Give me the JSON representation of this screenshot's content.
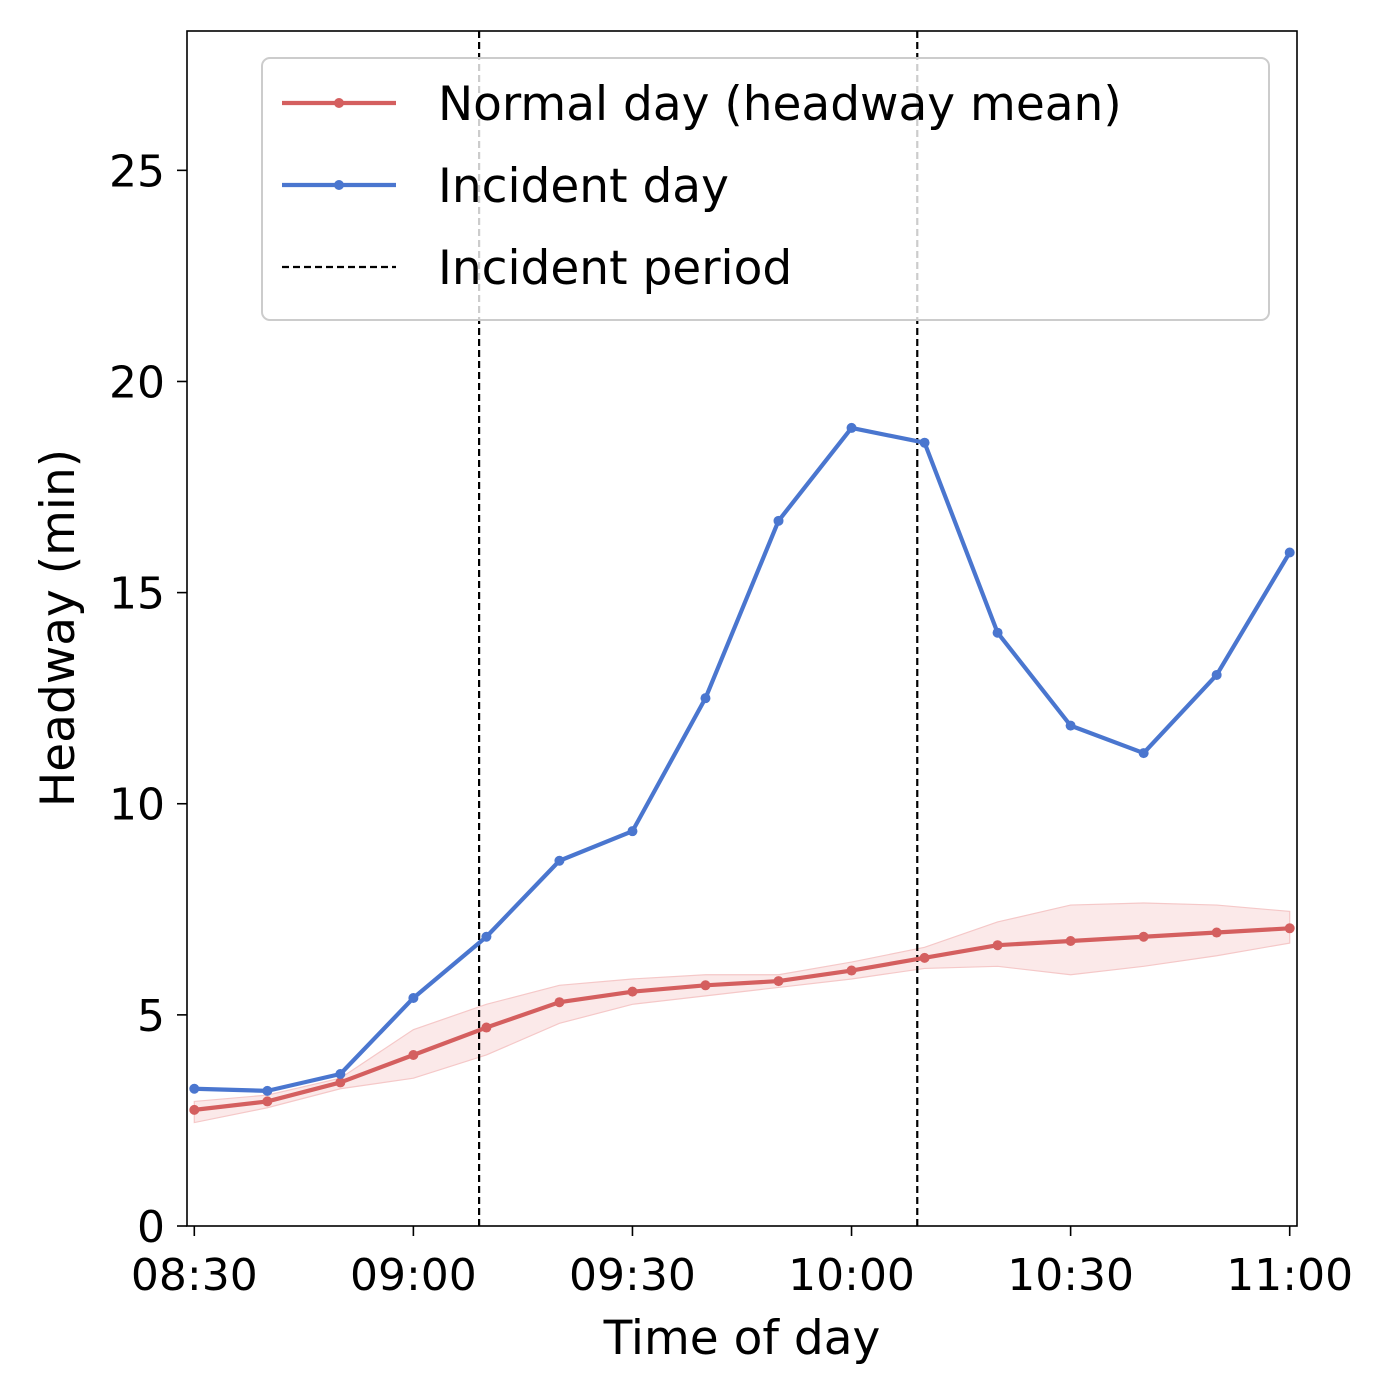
{
  "chart_data": {
    "type": "line",
    "title": "",
    "xlabel": "Time of day",
    "ylabel": "Headway (min)",
    "x_minutes_from_midnight": [
      510,
      520,
      530,
      540,
      550,
      560,
      570,
      580,
      590,
      600,
      610,
      620,
      630,
      640,
      650,
      660
    ],
    "xlim": [
      509,
      661
    ],
    "ylim": [
      0,
      28.3
    ],
    "xticks": [
      {
        "value": 510,
        "label": "08:30"
      },
      {
        "value": 540,
        "label": "09:00"
      },
      {
        "value": 570,
        "label": "09:30"
      },
      {
        "value": 600,
        "label": "10:00"
      },
      {
        "value": 630,
        "label": "10:30"
      },
      {
        "value": 660,
        "label": "11:00"
      }
    ],
    "yticks": [
      {
        "value": 0,
        "label": "0"
      },
      {
        "value": 5,
        "label": "5"
      },
      {
        "value": 10,
        "label": "10"
      },
      {
        "value": 15,
        "label": "15"
      },
      {
        "value": 20,
        "label": "20"
      },
      {
        "value": 25,
        "label": "25"
      }
    ],
    "series": [
      {
        "name": "Normal day (headway mean)",
        "color": "#d45f5f",
        "values": [
          2.75,
          2.95,
          3.4,
          4.05,
          4.7,
          5.3,
          5.55,
          5.7,
          5.8,
          6.05,
          6.35,
          6.65,
          6.75,
          6.85,
          6.95,
          7.05
        ],
        "band_lower": [
          2.45,
          2.8,
          3.25,
          3.5,
          4.05,
          4.8,
          5.25,
          5.45,
          5.65,
          5.85,
          6.1,
          6.15,
          5.95,
          6.15,
          6.4,
          6.7
        ],
        "band_upper": [
          2.95,
          3.1,
          3.5,
          4.65,
          5.25,
          5.7,
          5.85,
          5.95,
          5.95,
          6.25,
          6.6,
          7.2,
          7.6,
          7.65,
          7.6,
          7.45
        ],
        "band_color": "#f5c8c8"
      },
      {
        "name": "Incident day",
        "color": "#4a76cf",
        "values": [
          3.25,
          3.2,
          3.6,
          5.4,
          6.85,
          8.65,
          9.35,
          12.5,
          16.7,
          18.9,
          18.55,
          14.05,
          11.85,
          11.2,
          13.05,
          15.95
        ]
      }
    ],
    "vlines": [
      {
        "name": "Incident period",
        "x": [
          549,
          609
        ],
        "style": "dashed",
        "color": "#000000"
      }
    ],
    "legend": {
      "position": "top-right",
      "entries": [
        {
          "label": "Normal day (headway mean)",
          "kind": "line-marker",
          "color": "#d45f5f"
        },
        {
          "label": "Incident day",
          "kind": "line-marker",
          "color": "#4a76cf"
        },
        {
          "label": "Incident period",
          "kind": "dashed",
          "color": "#000000"
        }
      ]
    },
    "grid": false
  }
}
